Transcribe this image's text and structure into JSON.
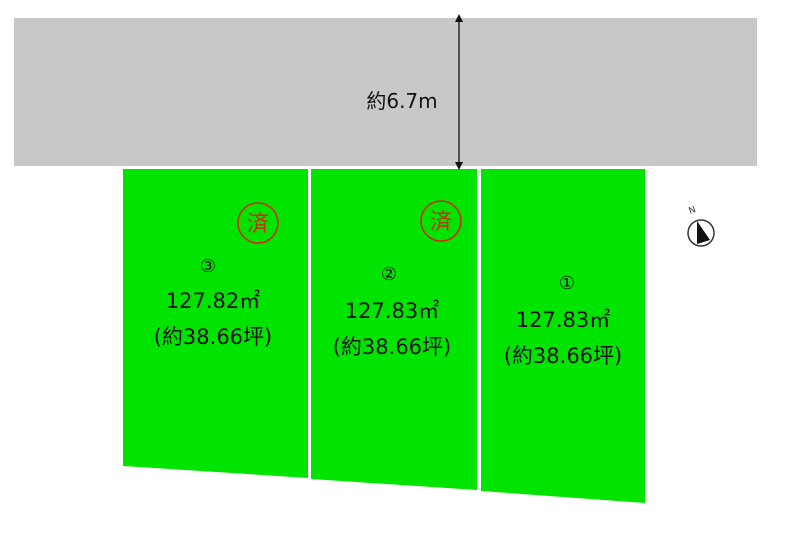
{
  "road": {
    "width_label": "約6.7m",
    "color": "#c8c8c8"
  },
  "lot_color": "#00e400",
  "stamp": {
    "label": "済",
    "color": "#d02a10"
  },
  "lots": [
    {
      "number": "①",
      "area": "127.83㎡",
      "tsubo": "(約38.66坪)",
      "sold": false
    },
    {
      "number": "②",
      "area": "127.83㎡",
      "tsubo": "(約38.66坪)",
      "sold": true
    },
    {
      "number": "③",
      "area": "127.82㎡",
      "tsubo": "(約38.66坪)",
      "sold": true
    }
  ],
  "compass": {
    "label": "N",
    "icon": "north-arrow-icon"
  }
}
